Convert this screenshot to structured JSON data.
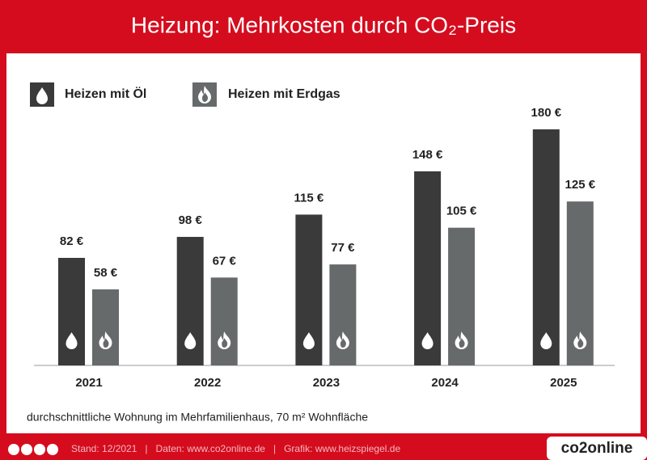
{
  "chart_data": {
    "type": "bar",
    "title": "Heizung: Mehrkosten durch CO₂-Preis",
    "categories": [
      "2021",
      "2022",
      "2023",
      "2024",
      "2025"
    ],
    "series": [
      {
        "name": "Heizen mit Öl",
        "color": "#3a3a3a",
        "values": [
          82,
          98,
          115,
          148,
          180
        ],
        "value_labels": [
          "82 €",
          "98 €",
          "115 €",
          "148 €",
          "180 €"
        ]
      },
      {
        "name": "Heizen mit Erdgas",
        "color": "#666a6a",
        "values": [
          58,
          67,
          77,
          105,
          125
        ],
        "value_labels": [
          "58 €",
          "67 €",
          "77 €",
          "105 €",
          "125 €"
        ]
      }
    ],
    "ylim": [
      0,
      180
    ],
    "note": "durchschnittliche Wohnung im Mehrfamilienhaus, 70 m² Wohnfläche",
    "footer": "Stand: 12/2021   |   Daten: www.co2online.de   |   Grafik: www.heizspiegel.de",
    "brand": "co2online"
  }
}
